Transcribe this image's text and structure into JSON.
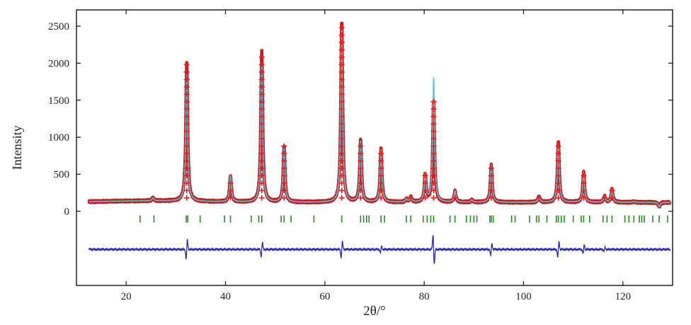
{
  "chart_data": {
    "type": "line",
    "title": "",
    "xlabel": "2θ/°",
    "ylabel": "Intensity",
    "xlim": [
      10,
      130
    ],
    "ylim": [
      -1000,
      2700
    ],
    "x_ticks": [
      20,
      40,
      60,
      80,
      100,
      120
    ],
    "y_ticks": [
      0,
      500,
      1000,
      1500,
      2000,
      2500
    ],
    "grid": false,
    "background": 120,
    "peaks": [
      {
        "two_theta": 25.4,
        "observed": 160,
        "calculated": 160,
        "difference": 0
      },
      {
        "two_theta": 32.2,
        "observed": 2010,
        "calculated": 1830,
        "difference": 280
      },
      {
        "two_theta": 41.0,
        "observed": 470,
        "calculated": 470,
        "difference": 0
      },
      {
        "two_theta": 47.3,
        "observed": 2170,
        "calculated": 2000,
        "difference": 200
      },
      {
        "two_theta": 51.8,
        "observed": 880,
        "calculated": 870,
        "difference": 0
      },
      {
        "two_theta": 63.4,
        "observed": 2560,
        "calculated": 2460,
        "difference": 230
      },
      {
        "two_theta": 67.2,
        "observed": 960,
        "calculated": 940,
        "difference": 0
      },
      {
        "two_theta": 71.3,
        "observed": 850,
        "calculated": 830,
        "difference": 100
      },
      {
        "two_theta": 76.4,
        "observed": 160,
        "calculated": 160,
        "difference": 0
      },
      {
        "two_theta": 77.3,
        "observed": 190,
        "calculated": 190,
        "difference": 0
      },
      {
        "two_theta": 80.2,
        "observed": 490,
        "calculated": 490,
        "difference": 0
      },
      {
        "two_theta": 81.9,
        "observed": 1480,
        "calculated": 1800,
        "difference": -430
      },
      {
        "two_theta": 86.2,
        "observed": 270,
        "calculated": 270,
        "difference": 0
      },
      {
        "two_theta": 89.6,
        "observed": 150,
        "calculated": 150,
        "difference": 0
      },
      {
        "two_theta": 93.5,
        "observed": 620,
        "calculated": 620,
        "difference": 180
      },
      {
        "two_theta": 103.1,
        "observed": 200,
        "calculated": 200,
        "difference": 0
      },
      {
        "two_theta": 107.0,
        "observed": 950,
        "calculated": 920,
        "difference": 230
      },
      {
        "two_theta": 112.1,
        "observed": 540,
        "calculated": 520,
        "difference": 130
      },
      {
        "two_theta": 116.3,
        "observed": 200,
        "calculated": 200,
        "difference": 60
      },
      {
        "two_theta": 117.8,
        "observed": 300,
        "calculated": 300,
        "difference": 0
      },
      {
        "two_theta": 122.2,
        "observed": 130,
        "calculated": 130,
        "difference": 0
      },
      {
        "two_theta": 127.3,
        "observed": 60,
        "calculated": 60,
        "difference": 0
      }
    ],
    "bragg_positions": [
      22.8,
      25.6,
      32.1,
      32.4,
      34.9,
      39.8,
      41.0,
      45.2,
      46.7,
      47.3,
      51.2,
      51.8,
      53.2,
      57.8,
      63.4,
      67.2,
      67.8,
      68.4,
      68.9,
      71.3,
      72.0,
      76.4,
      77.3,
      79.8,
      80.6,
      81.3,
      81.9,
      85.2,
      86.2,
      88.5,
      89.3,
      90.0,
      90.6,
      93.2,
      93.5,
      93.9,
      97.6,
      98.3,
      101.2,
      102.6,
      103.1,
      104.7,
      106.6,
      107.0,
      107.6,
      108.2,
      110.0,
      111.6,
      112.1,
      113.3,
      116.0,
      116.8,
      117.8,
      120.4,
      121.2,
      122.2,
      123.3,
      123.8,
      124.3,
      126.0,
      127.3,
      129.0
    ],
    "series": [
      {
        "color": "#c02020"
      },
      {
        "color": "#60c0d8"
      },
      {
        "color": "#e02020"
      },
      {
        "color": "#2a2a9a"
      },
      {
        "color": "#2a8a2a"
      }
    ]
  }
}
